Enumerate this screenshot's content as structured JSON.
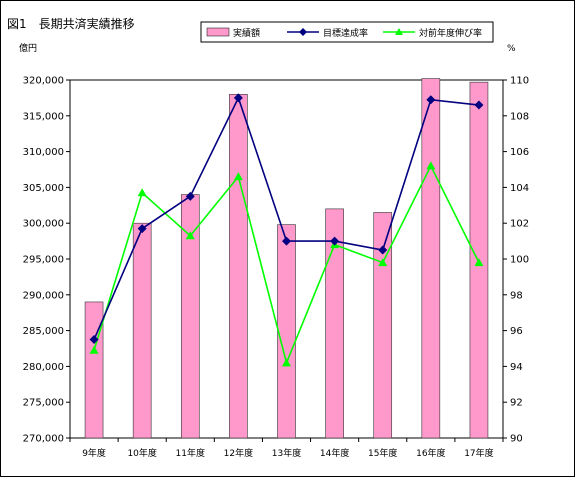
{
  "chart_data": {
    "type": "bar",
    "title": "図1　長期共済実績推移",
    "y_left_unit": "億円",
    "y_right_unit": "%",
    "categories": [
      "9年度",
      "10年度",
      "11年度",
      "12年度",
      "13年度",
      "14年度",
      "15年度",
      "16年度",
      "17年度"
    ],
    "y_left_lim": [
      270000,
      320000
    ],
    "y_left_ticks": [
      "270,000",
      "275,000",
      "280,000",
      "285,000",
      "290,000",
      "295,000",
      "300,000",
      "305,000",
      "310,000",
      "315,000",
      "320,000"
    ],
    "y_right_lim": [
      90,
      110
    ],
    "y_right_ticks": [
      "90",
      "92",
      "94",
      "96",
      "98",
      "100",
      "102",
      "104",
      "106",
      "108",
      "110"
    ],
    "legend_position": "top",
    "grid": false,
    "series": [
      {
        "name": "実績額",
        "type": "bar",
        "axis": "left",
        "color": "#ff99cc",
        "values": [
          289000,
          300000,
          304000,
          318000,
          299800,
          302000,
          301500,
          320200,
          319700
        ]
      },
      {
        "name": "目標達成率",
        "type": "line",
        "axis": "right",
        "color": "#000080",
        "marker": "diamond",
        "values": [
          95.5,
          101.7,
          103.5,
          109.0,
          101.0,
          101.0,
          100.5,
          108.9,
          108.6
        ]
      },
      {
        "name": "対前年度伸び率",
        "type": "line",
        "axis": "right",
        "color": "#00ff00",
        "marker": "triangle",
        "values": [
          94.9,
          103.7,
          101.3,
          104.6,
          94.2,
          100.8,
          99.8,
          105.2,
          99.8
        ]
      }
    ]
  }
}
